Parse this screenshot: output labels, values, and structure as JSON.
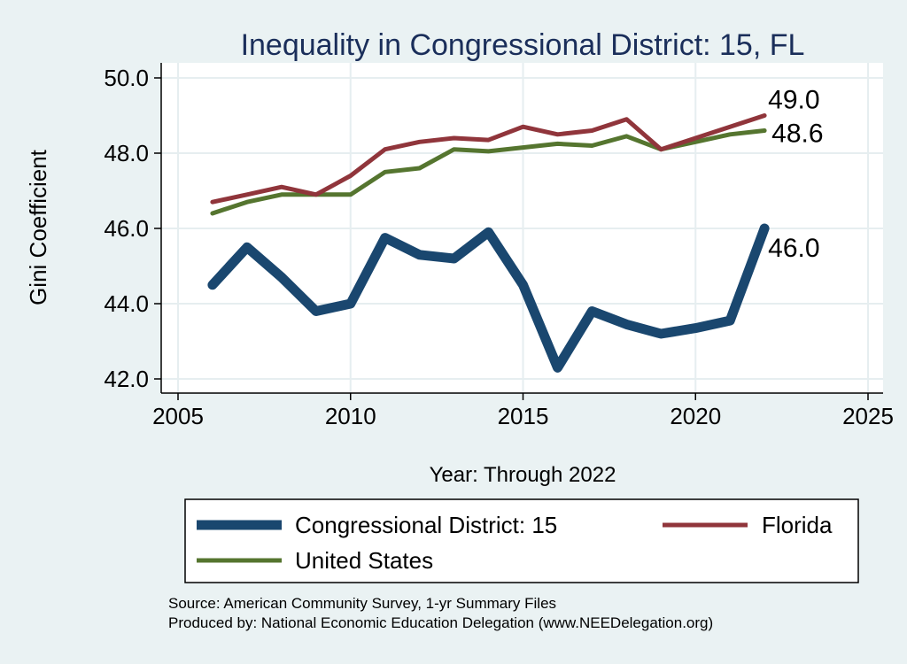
{
  "chart_data": {
    "type": "line",
    "title": "Inequality in Congressional District:  15, FL",
    "xlabel": "Year: Through 2022",
    "ylabel": "Gini Coefficient",
    "xlim": [
      2005,
      2025
    ],
    "ylim": [
      42.0,
      50.0
    ],
    "x_ticks": [
      2005,
      2010,
      2015,
      2020,
      2025
    ],
    "y_ticks": [
      "42.0",
      "44.0",
      "46.0",
      "48.0",
      "50.0"
    ],
    "grid": true,
    "legend_position": "bottom",
    "series": [
      {
        "name": "Congressional District:  15",
        "color": "#1a476f",
        "x": [
          2006,
          2007,
          2008,
          2009,
          2010,
          2011,
          2012,
          2013,
          2014,
          2015,
          2016,
          2017,
          2018,
          2019,
          2020,
          2021,
          2022
        ],
        "values": [
          44.5,
          45.5,
          44.7,
          43.8,
          44.0,
          45.75,
          45.3,
          45.2,
          45.9,
          44.5,
          42.3,
          43.8,
          43.45,
          43.2,
          43.35,
          43.55,
          46.0
        ],
        "end_label": "46.0"
      },
      {
        "name": "Florida",
        "color": "#90353b",
        "x": [
          2006,
          2007,
          2008,
          2009,
          2010,
          2011,
          2012,
          2013,
          2014,
          2015,
          2016,
          2017,
          2018,
          2019,
          2020,
          2021,
          2022
        ],
        "values": [
          46.7,
          46.9,
          47.1,
          46.9,
          47.4,
          48.1,
          48.3,
          48.4,
          48.35,
          48.7,
          48.5,
          48.6,
          48.9,
          48.1,
          48.4,
          48.7,
          49.0
        ],
        "end_label": "49.0"
      },
      {
        "name": "United States",
        "color": "#55752f",
        "x": [
          2006,
          2007,
          2008,
          2009,
          2010,
          2011,
          2012,
          2013,
          2014,
          2015,
          2016,
          2017,
          2018,
          2019,
          2020,
          2021,
          2022
        ],
        "values": [
          46.4,
          46.7,
          46.9,
          46.9,
          46.9,
          47.5,
          47.6,
          48.1,
          48.05,
          48.15,
          48.25,
          48.2,
          48.45,
          48.1,
          48.3,
          48.5,
          48.6
        ],
        "end_label": "48.6"
      }
    ]
  },
  "legend": {
    "items": [
      "Congressional District:  15",
      "Florida",
      "United States"
    ]
  },
  "footer": {
    "source": "Source: American Community Survey, 1-yr Summary Files",
    "produced_by": "Produced by: National Economic Education Delegation (www.NEEDelegation.org)"
  }
}
